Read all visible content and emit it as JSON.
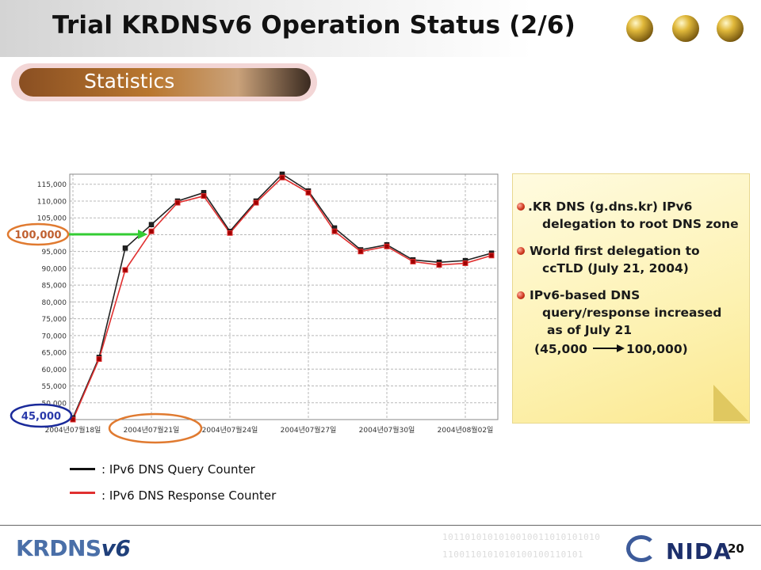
{
  "header": {
    "title": "Trial KRDNSv6 Operation Status (2/6)"
  },
  "section": {
    "label": "Statistics"
  },
  "chart_data": {
    "type": "line",
    "x_tick_labels": [
      "2004년07월18일",
      "2004년07월21일",
      "2004년07월24일",
      "2004년07월27일",
      "2004년07월30일",
      "2004년08월02일"
    ],
    "y_tick_labels": [
      "45,000",
      "50,000",
      "55,000",
      "60,000",
      "65,000",
      "70,000",
      "75,000",
      "80,000",
      "85,000",
      "90,000",
      "95,000",
      "100,000",
      "105,000",
      "110,000",
      "115,000"
    ],
    "ylim": [
      45000,
      118000
    ],
    "grid": true,
    "series": [
      {
        "name": "IPv6 DNS Query Counter",
        "color": "#222222",
        "values": [
          45500,
          63500,
          96000,
          103000,
          110000,
          112500,
          101000,
          110000,
          118000,
          113000,
          102000,
          95500,
          97000,
          92500,
          91800,
          92300,
          94500
        ]
      },
      {
        "name": "IPv6 DNS Response Counter",
        "color": "#e03030",
        "values": [
          45000,
          63000,
          89500,
          101000,
          109500,
          111500,
          100500,
          109500,
          117000,
          112500,
          101000,
          95000,
          96500,
          92000,
          91000,
          91500,
          93800
        ]
      }
    ],
    "annotations": {
      "high": "100,000",
      "low": "45,000"
    }
  },
  "legend": {
    "query_label": ": IPv6 DNS Query Counter",
    "response_label": ": IPv6 DNS Response Counter"
  },
  "notes": {
    "item1_line1": ".KR DNS (g.dns.kr) IPv6",
    "item1_line2": "delegation to root DNS zone",
    "item2_line1": "World first delegation to",
    "item2_line2": "ccTLD (July 21, 2004)",
    "item3_line1": "IPv6-based DNS",
    "item3_line2": "query/response increased",
    "item3_line3": "as of July 21",
    "item3_from": "(45,000",
    "item3_to": "100,000)"
  },
  "footer": {
    "binary_line1": "1011010101010010011010101010",
    "binary_line2": "1100110101010100100110101",
    "logo_left_main": "KRDNS",
    "logo_left_six": "v6",
    "logo_right": "NIDA",
    "page_number": "20"
  },
  "colors": {
    "accent": "#c87a3a",
    "query": "#222222",
    "response": "#e03030",
    "arrow": "#33cc33"
  }
}
